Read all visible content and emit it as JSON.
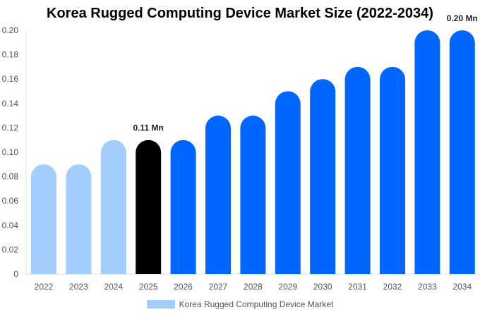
{
  "chart_data": {
    "type": "bar",
    "title": "Korea Rugged Computing Device Market Size (2022-2034)",
    "categories": [
      "2022",
      "2023",
      "2024",
      "2025",
      "2026",
      "2027",
      "2028",
      "2029",
      "2030",
      "2031",
      "2032",
      "2033",
      "2034"
    ],
    "series": [
      {
        "name": "Korea Rugged Computing Device Market",
        "values": [
          0.09,
          0.09,
          0.11,
          0.11,
          0.11,
          0.13,
          0.13,
          0.15,
          0.16,
          0.17,
          0.17,
          0.2,
          0.2
        ]
      }
    ],
    "bar_colors": [
      "#a3cdfd",
      "#a3cdfd",
      "#a3cdfd",
      "#000000",
      "#0066ff",
      "#0066ff",
      "#0066ff",
      "#0066ff",
      "#0066ff",
      "#0066ff",
      "#0066ff",
      "#0066ff",
      "#0066ff"
    ],
    "data_labels": [
      {
        "category": "2025",
        "text": "0.11 Mn"
      },
      {
        "category": "2034",
        "text": "0.20 Mn"
      }
    ],
    "ylim": [
      0,
      0.2
    ],
    "yticks": [
      "0",
      "0.02",
      "0.04",
      "0.06",
      "0.08",
      "0.10",
      "0.12",
      "0.14",
      "0.16",
      "0.18",
      "0.20"
    ],
    "grid": false,
    "legend_position": "bottom",
    "legend_color": "#a3cdfd",
    "xlabel": "",
    "ylabel": ""
  }
}
